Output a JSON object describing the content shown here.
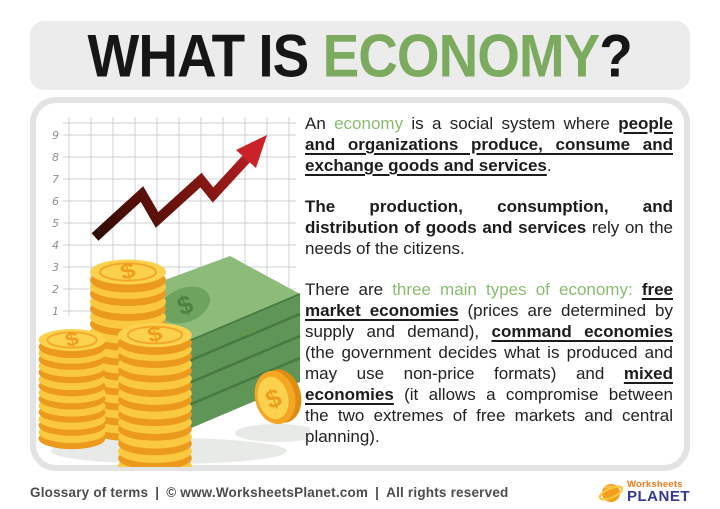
{
  "title": {
    "black": "WHAT IS",
    "green": "ECONOMY",
    "mark": "?"
  },
  "definition_card": {
    "paragraphs": [
      {
        "runs": [
          {
            "t": "An ",
            "s": "normal"
          },
          {
            "t": "economy",
            "s": "green"
          },
          {
            "t": " is a social system where ",
            "s": "normal"
          },
          {
            "t": "people and organizations produce, consume and exchange goods and services",
            "s": "boldu"
          },
          {
            "t": ".",
            "s": "normal"
          }
        ]
      },
      {
        "runs": [
          {
            "t": "The production, consumption, and distribution of goods and services",
            "s": "bold"
          },
          {
            "t": " rely on the needs of the citizens.",
            "s": "normal"
          }
        ]
      },
      {
        "runs": [
          {
            "t": "There are ",
            "s": "normal"
          },
          {
            "t": "three main types of economy:",
            "s": "green"
          },
          {
            "t": " ",
            "s": "normal"
          },
          {
            "t": "free market economies",
            "s": "boldu"
          },
          {
            "t": " (prices are determined by supply and demand), ",
            "s": "normal"
          },
          {
            "t": "command economies",
            "s": "boldu"
          },
          {
            "t": " (the government decides what is produced and may use non-price formats) and ",
            "s": "normal"
          },
          {
            "t": "mixed economies",
            "s": "boldu"
          },
          {
            "t": " (it allows a compromise between the two extremes of free markets and central planning).",
            "s": "normal"
          }
        ]
      }
    ]
  },
  "illustration": {
    "chart_axis_labels": [
      "9",
      "8",
      "7",
      "6",
      "5",
      "4",
      "3",
      "2",
      "1"
    ],
    "coin_symbol": "$",
    "money_symbol": "$"
  },
  "footer": {
    "glossary": "Glossary of terms",
    "separator": "|",
    "copyright": "© www.WorksheetsPlanet.com",
    "rights": "All rights reserved"
  },
  "logo": {
    "line1": "Worksheets",
    "line2": "PLANET"
  },
  "colors": {
    "title_green": "#7cab5f",
    "body_green": "#8abc6e",
    "arrow_red": "#c92329",
    "arrow_dark": "#2e0b04",
    "coin_gold": "#fbd14d",
    "coin_rim": "#ec9a1e",
    "money_green": "#8cbb7a",
    "grid_gray": "#ccd1d5",
    "title_bar_bg": "#ececec",
    "card_border": "#e3e3e3",
    "footer_text": "#4c4c4c",
    "logo_orange": "#f07c1d",
    "logo_blue": "#34388e"
  }
}
